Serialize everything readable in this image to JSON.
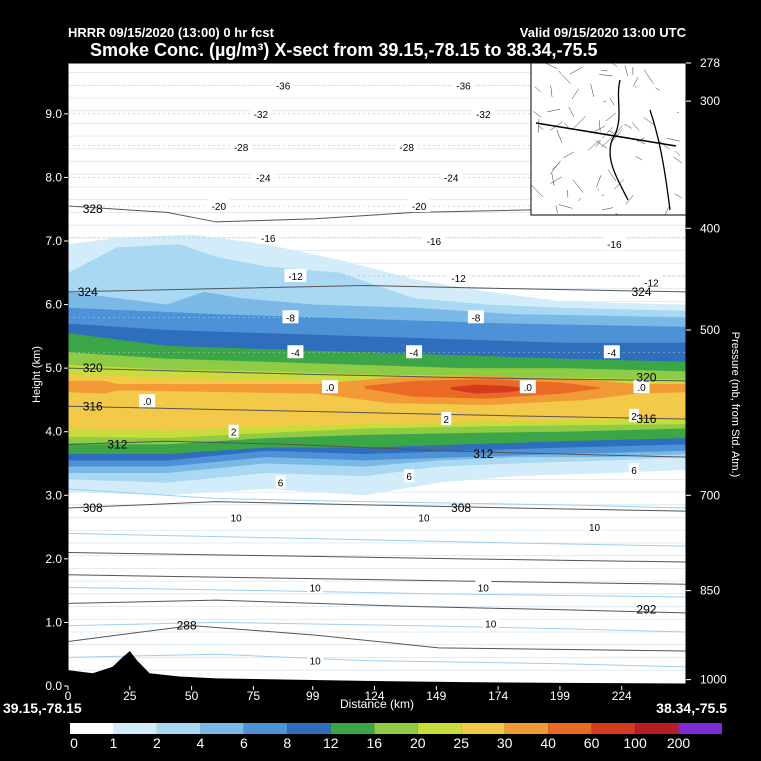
{
  "header": {
    "top_left": "HRRR 09/15/2020 (13:00) 0 hr fcst",
    "top_right": "Valid 09/15/2020 13:00 UTC",
    "title": "Smoke Conc. (µg/m³) X-sect from 39.15,-78.15 to 38.34,-75.5"
  },
  "chart_data": {
    "type": "heatmap",
    "xlabel": "Distance (km)",
    "ylabel": "Height (km)",
    "y2label": "Pressure (mb, from Std. Atm.)",
    "x_ticks": [
      "0",
      "25",
      "50",
      "75",
      "99",
      "124",
      "149",
      "174",
      "199",
      "224"
    ],
    "x_tick_values": [
      0,
      25,
      50,
      75,
      99,
      124,
      149,
      174,
      199,
      224
    ],
    "xlim": [
      0,
      250
    ],
    "y_ticks": [
      "0.0",
      "1.0",
      "2.0",
      "3.0",
      "4.0",
      "5.0",
      "6.0",
      "7.0",
      "8.0",
      "9.0"
    ],
    "y_tick_values": [
      0,
      1,
      2,
      3,
      4,
      5,
      6,
      7,
      8,
      9
    ],
    "ylim": [
      0,
      9.8
    ],
    "pressure_ticks": [
      {
        "label": "278",
        "height": 9.8
      },
      {
        "label": "300",
        "height": 9.2
      },
      {
        "label": "400",
        "height": 7.2
      },
      {
        "label": "500",
        "height": 5.6
      },
      {
        "label": "700",
        "height": 3.0
      },
      {
        "label": "850",
        "height": 1.5
      },
      {
        "label": "1000",
        "height": 0.1
      }
    ],
    "start_label": "39.15,-78.15",
    "end_label": "38.34,-75.5",
    "colorbar_labels": [
      "0",
      "1",
      "2",
      "4",
      "6",
      "8",
      "12",
      "16",
      "20",
      "25",
      "30",
      "40",
      "60",
      "100",
      "200"
    ],
    "colorbar_colors": [
      "#ffffff",
      "#d2ecfa",
      "#a8d8f2",
      "#7ab8e6",
      "#4d92d6",
      "#2f6dbd",
      "#3aa648",
      "#8dcc44",
      "#c8dc3c",
      "#f3c94a",
      "#f29a36",
      "#ea6a25",
      "#d63a1e",
      "#b51e24",
      "#7b2ad4"
    ],
    "isotherm_labels": [
      {
        "text": "-36",
        "x": 87,
        "y": 9.45
      },
      {
        "text": "-36",
        "x": 160,
        "y": 9.45
      },
      {
        "text": "-32",
        "x": 78,
        "y": 9.0
      },
      {
        "text": "-32",
        "x": 168,
        "y": 9.0
      },
      {
        "text": "-28",
        "x": 70,
        "y": 8.48
      },
      {
        "text": "-28",
        "x": 137,
        "y": 8.48
      },
      {
        "text": "-24",
        "x": 79,
        "y": 8.0
      },
      {
        "text": "-24",
        "x": 155,
        "y": 8.0
      },
      {
        "text": "-20",
        "x": 61,
        "y": 7.55
      },
      {
        "text": "-20",
        "x": 142,
        "y": 7.55
      },
      {
        "text": "-16",
        "x": 81,
        "y": 7.05
      },
      {
        "text": "-16",
        "x": 148,
        "y": 7.0
      },
      {
        "text": "-16",
        "x": 221,
        "y": 6.95
      },
      {
        "text": "-12",
        "x": 92,
        "y": 6.45
      },
      {
        "text": "-12",
        "x": 158,
        "y": 6.42
      },
      {
        "text": "-12",
        "x": 236,
        "y": 6.35
      },
      {
        "text": "-8",
        "x": 90,
        "y": 5.8
      },
      {
        "text": "-8",
        "x": 165,
        "y": 5.8
      },
      {
        "text": "-4",
        "x": 92,
        "y": 5.25
      },
      {
        "text": "-4",
        "x": 140,
        "y": 5.25
      },
      {
        "text": "-4",
        "x": 220,
        "y": 5.25
      },
      {
        "text": ".0",
        "x": 32,
        "y": 4.48
      },
      {
        "text": ".0",
        "x": 106,
        "y": 4.7
      },
      {
        "text": ".0",
        "x": 186,
        "y": 4.7
      },
      {
        "text": ".0",
        "x": 232,
        "y": 4.7
      },
      {
        "text": "2",
        "x": 67,
        "y": 4.0
      },
      {
        "text": "2",
        "x": 153,
        "y": 4.2
      },
      {
        "text": "2",
        "x": 229,
        "y": 4.25
      },
      {
        "text": "6",
        "x": 86,
        "y": 3.2
      },
      {
        "text": "6",
        "x": 138,
        "y": 3.3
      },
      {
        "text": "6",
        "x": 229,
        "y": 3.4
      },
      {
        "text": "10",
        "x": 68,
        "y": 2.65
      },
      {
        "text": "10",
        "x": 144,
        "y": 2.65
      },
      {
        "text": "10",
        "x": 213,
        "y": 2.5
      },
      {
        "text": "10",
        "x": 100,
        "y": 1.55
      },
      {
        "text": "10",
        "x": 168,
        "y": 1.55
      },
      {
        "text": "10",
        "x": 171,
        "y": 0.98
      },
      {
        "text": "10",
        "x": 100,
        "y": 0.4
      }
    ],
    "theta_labels": [
      {
        "text": "328",
        "x": 10,
        "y": 7.5
      },
      {
        "text": "324",
        "x": 8,
        "y": 6.2
      },
      {
        "text": "324",
        "x": 232,
        "y": 6.2
      },
      {
        "text": "320",
        "x": 10,
        "y": 5.0
      },
      {
        "text": "320",
        "x": 234,
        "y": 4.85
      },
      {
        "text": "316",
        "x": 10,
        "y": 4.4
      },
      {
        "text": "316",
        "x": 234,
        "y": 4.2
      },
      {
        "text": "312",
        "x": 20,
        "y": 3.8
      },
      {
        "text": "312",
        "x": 168,
        "y": 3.65
      },
      {
        "text": "308",
        "x": 10,
        "y": 2.8
      },
      {
        "text": "308",
        "x": 159,
        "y": 2.8
      },
      {
        "text": "292",
        "x": 234,
        "y": 1.2
      },
      {
        "text": "288",
        "x": 48,
        "y": 0.95
      }
    ]
  }
}
